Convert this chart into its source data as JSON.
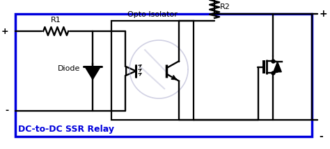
{
  "title": "DC-to-DC SSR Relay",
  "label_r1": "R1",
  "label_r2": "R2",
  "label_diode": "Diode",
  "label_opto": "Opto Isolator",
  "label_plus_left": "+",
  "label_minus_left": "-",
  "label_plus_right": "+",
  "label_minus_right": "-",
  "border_color": "#0000DD",
  "line_color": "#000000",
  "title_color": "#0000DD",
  "bg_color": "#FFFFFF",
  "ghost_color": "#AAAACC",
  "fig_width": 4.74,
  "fig_height": 2.15,
  "dpi": 100
}
